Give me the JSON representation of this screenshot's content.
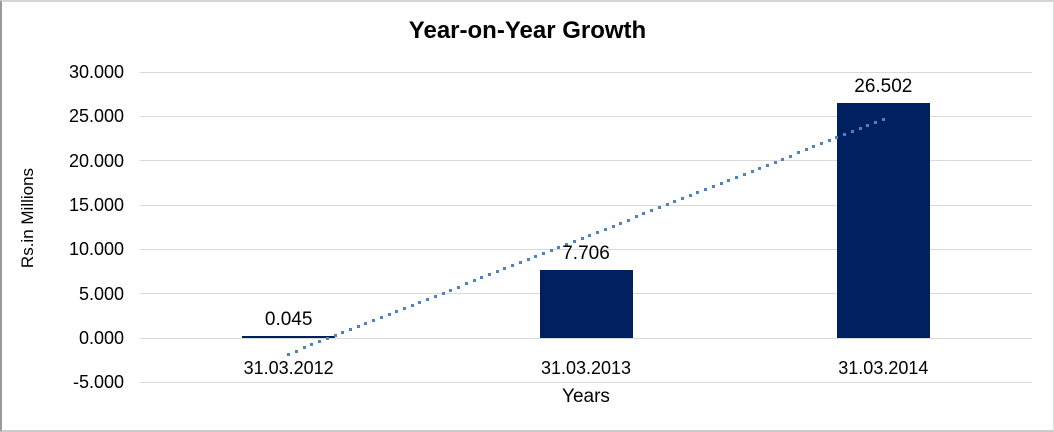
{
  "chart_data": {
    "type": "bar",
    "title": "Year-on-Year Growth",
    "xlabel": "Years",
    "ylabel": "Rs.in Millions",
    "categories": [
      "31.03.2012",
      "31.03.2013",
      "31.03.2014"
    ],
    "values": [
      0.045,
      7.706,
      26.502
    ],
    "data_labels": [
      "0.045",
      "7.706",
      "26.502"
    ],
    "y_ticks": [
      {
        "value": 30,
        "label": "30.000"
      },
      {
        "value": 25,
        "label": "25.000"
      },
      {
        "value": 20,
        "label": "20.000"
      },
      {
        "value": 15,
        "label": "15.000"
      },
      {
        "value": 10,
        "label": "10.000"
      },
      {
        "value": 5,
        "label": "5.000"
      },
      {
        "value": 0,
        "label": "0.000"
      },
      {
        "value": -5,
        "label": "-5.000"
      }
    ],
    "ylim": [
      -5,
      30
    ],
    "grid": true,
    "legend": false,
    "trendline": {
      "type": "linear",
      "style": "dotted"
    },
    "colors": {
      "bar": "#002060",
      "trendline": "#4d82c4",
      "gridline": "#d9d9d9",
      "text": "#000000",
      "background": "#ffffff"
    }
  }
}
